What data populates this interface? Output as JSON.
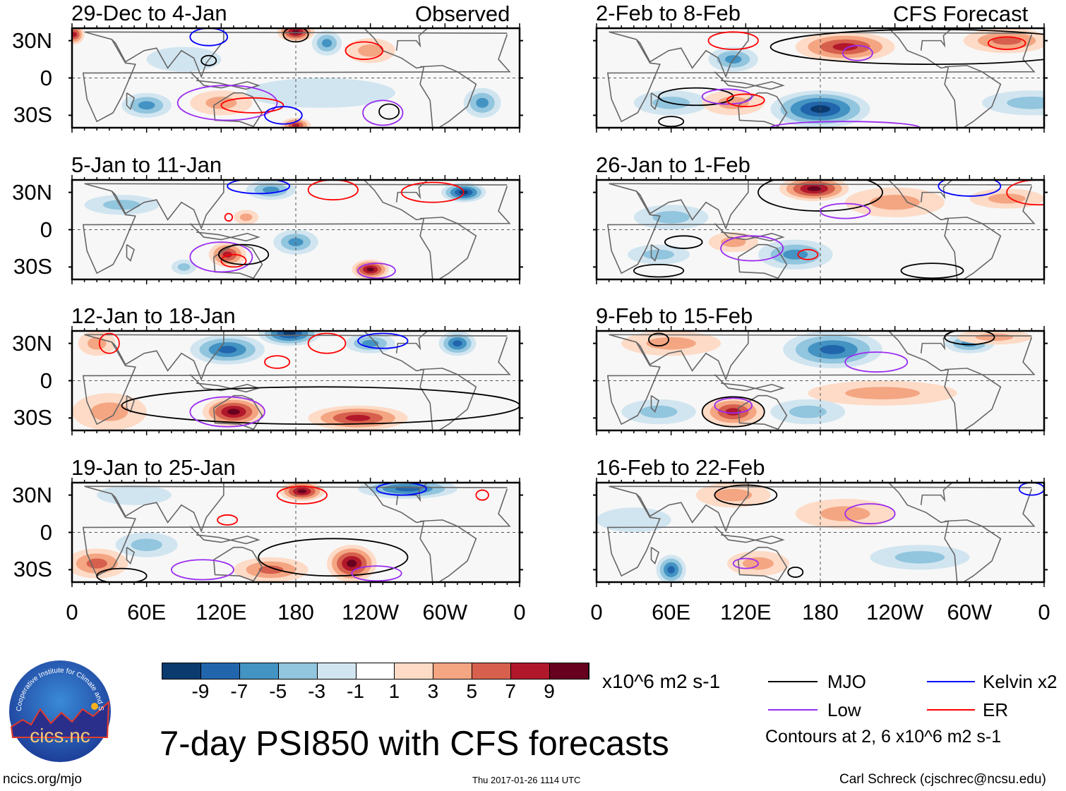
{
  "header": {
    "left_tag": "Observed",
    "right_tag": "CFS Forecast"
  },
  "chart_data": {
    "type": "heatmap",
    "title": "7-day PSI850 with CFS forecasts",
    "variable": "PSI850 anomaly",
    "units": "x10^6 m2 s-1",
    "lon_ticks": [
      "0",
      "60E",
      "120E",
      "180",
      "120W",
      "60W",
      "0"
    ],
    "lat_ticks": [
      "30N",
      "0",
      "30S"
    ],
    "lat_range": [
      -40,
      40
    ],
    "lon_range": [
      0,
      360
    ],
    "colorbar": {
      "levels": [
        "-9",
        "-7",
        "-5",
        "-3",
        "-1",
        "1",
        "3",
        "5",
        "7",
        "9"
      ],
      "colors": [
        "#0b3a6e",
        "#2166ac",
        "#4393c3",
        "#92c5de",
        "#d1e5f0",
        "#ffffff",
        "#fddbc7",
        "#f4a582",
        "#d6604d",
        "#b2182b",
        "#67001f"
      ]
    },
    "contour_legend": [
      {
        "name": "MJO",
        "color": "#000000"
      },
      {
        "name": "Kelvin x2",
        "color": "#0000ff"
      },
      {
        "name": "Low",
        "color": "#9a2cf0"
      },
      {
        "name": "ER",
        "color": "#ff0000"
      }
    ],
    "contour_note": "Contours at 2, 6 x10^6 m2 s-1",
    "panels": [
      {
        "period": "29-Dec to 4-Jan",
        "kind": "observed",
        "anomalies": [
          [
            200,
            -12,
            -2,
            60,
            12
          ],
          [
            180,
            37,
            9,
            15,
            8
          ],
          [
            205,
            28,
            -5,
            12,
            10
          ],
          [
            240,
            22,
            3,
            20,
            10
          ],
          [
            330,
            -20,
            -5,
            15,
            12
          ],
          [
            60,
            -22,
            -5,
            20,
            10
          ],
          [
            120,
            -20,
            3,
            25,
            10
          ],
          [
            180,
            -38,
            7,
            12,
            6
          ],
          [
            2,
            35,
            7,
            8,
            8
          ],
          [
            90,
            15,
            -2,
            30,
            10
          ]
        ],
        "contours": [
          [
            "MJO",
            180,
            35,
            10,
            6
          ],
          [
            "Kelvin",
            110,
            33,
            15,
            7
          ],
          [
            "ER",
            235,
            22,
            15,
            7
          ],
          [
            "Low",
            125,
            -20,
            40,
            14
          ],
          [
            "ER",
            145,
            -22,
            25,
            6
          ],
          [
            "MJO",
            255,
            -27,
            8,
            6
          ],
          [
            "Kelvin",
            170,
            -30,
            15,
            7
          ],
          [
            "MJO",
            110,
            14,
            6,
            4
          ],
          [
            "Low",
            250,
            -28,
            16,
            10
          ]
        ]
      },
      {
        "period": "2-Feb to 8-Feb",
        "kind": "forecast",
        "anomalies": [
          [
            200,
            25,
            7,
            40,
            12
          ],
          [
            330,
            30,
            5,
            35,
            10
          ],
          [
            180,
            -25,
            -9,
            40,
            15
          ],
          [
            110,
            15,
            -5,
            20,
            10
          ],
          [
            60,
            -20,
            -3,
            30,
            10
          ],
          [
            110,
            -20,
            3,
            25,
            10
          ],
          [
            350,
            -20,
            -3,
            40,
            10
          ]
        ],
        "contours": [
          [
            "MJO",
            270,
            25,
            130,
            14
          ],
          [
            "ER",
            110,
            30,
            20,
            7
          ],
          [
            "ER",
            330,
            28,
            15,
            5
          ],
          [
            "MJO",
            80,
            -15,
            30,
            7
          ],
          [
            "Low",
            105,
            -15,
            20,
            6
          ],
          [
            "ER",
            120,
            -18,
            15,
            5
          ],
          [
            "MJO",
            60,
            -35,
            10,
            4
          ],
          [
            "Low",
            200,
            -40,
            60,
            5
          ],
          [
            "Low",
            210,
            20,
            12,
            6
          ]
        ]
      },
      {
        "period": "5-Jan to 11-Jan",
        "kind": "observed",
        "anomalies": [
          [
            315,
            30,
            -9,
            18,
            8
          ],
          [
            160,
            32,
            -5,
            20,
            8
          ],
          [
            180,
            -10,
            -5,
            18,
            10
          ],
          [
            40,
            20,
            -3,
            30,
            8
          ],
          [
            125,
            -20,
            7,
            15,
            10
          ],
          [
            240,
            -32,
            9,
            15,
            8
          ],
          [
            140,
            10,
            3,
            10,
            6
          ],
          [
            90,
            -30,
            -3,
            10,
            6
          ]
        ],
        "contours": [
          [
            "Low",
            120,
            -22,
            25,
            12
          ],
          [
            "ER",
            130,
            -25,
            10,
            5
          ],
          [
            "MJO",
            138,
            -20,
            20,
            8
          ],
          [
            "Low",
            245,
            -33,
            15,
            6
          ],
          [
            "ER",
            290,
            30,
            25,
            8
          ],
          [
            "Kelvin",
            150,
            35,
            25,
            6
          ],
          [
            "ER",
            210,
            32,
            20,
            8
          ],
          [
            "ER",
            126,
            10,
            3,
            3
          ]
        ]
      },
      {
        "period": "26-Jan to 1-Feb",
        "kind": "forecast",
        "anomalies": [
          [
            175,
            33,
            9,
            28,
            10
          ],
          [
            240,
            22,
            3,
            40,
            12
          ],
          [
            160,
            -20,
            -5,
            30,
            12
          ],
          [
            330,
            25,
            3,
            30,
            8
          ],
          [
            60,
            10,
            -3,
            30,
            10
          ],
          [
            50,
            -20,
            -3,
            25,
            8
          ],
          [
            110,
            -10,
            3,
            20,
            8
          ]
        ],
        "contours": [
          [
            "MJO",
            180,
            30,
            50,
            15
          ],
          [
            "ER",
            355,
            30,
            25,
            10
          ],
          [
            "Low",
            200,
            15,
            20,
            6
          ],
          [
            "Low",
            125,
            -15,
            25,
            10
          ],
          [
            "MJO",
            70,
            -10,
            15,
            5
          ],
          [
            "MJO",
            50,
            -33,
            20,
            5
          ],
          [
            "ER",
            170,
            -20,
            8,
            4
          ],
          [
            "MJO",
            270,
            -33,
            25,
            6
          ],
          [
            "Kelvin",
            300,
            35,
            25,
            8
          ]
        ]
      },
      {
        "period": "12-Jan to 18-Jan",
        "kind": "observed",
        "anomalies": [
          [
            175,
            38,
            -9,
            25,
            10
          ],
          [
            125,
            25,
            -7,
            30,
            12
          ],
          [
            310,
            30,
            -7,
            15,
            10
          ],
          [
            240,
            30,
            -5,
            20,
            8
          ],
          [
            130,
            -25,
            9,
            25,
            12
          ],
          [
            230,
            -30,
            7,
            40,
            10
          ],
          [
            30,
            -25,
            3,
            30,
            15
          ],
          [
            20,
            30,
            3,
            15,
            10
          ]
        ],
        "contours": [
          [
            "MJO",
            200,
            -20,
            160,
            15
          ],
          [
            "Low",
            125,
            -25,
            30,
            12
          ],
          [
            "ER",
            165,
            15,
            10,
            5
          ],
          [
            "ER",
            205,
            30,
            15,
            8
          ],
          [
            "ER",
            30,
            30,
            8,
            8
          ],
          [
            "Kelvin",
            250,
            32,
            20,
            6
          ]
        ]
      },
      {
        "period": "9-Feb to 15-Feb",
        "kind": "forecast",
        "anomalies": [
          [
            190,
            25,
            -7,
            40,
            15
          ],
          [
            300,
            30,
            -5,
            20,
            8
          ],
          [
            110,
            -25,
            7,
            25,
            12
          ],
          [
            230,
            -10,
            3,
            60,
            10
          ],
          [
            50,
            -25,
            -3,
            30,
            10
          ],
          [
            170,
            -25,
            -3,
            30,
            10
          ],
          [
            60,
            30,
            3,
            40,
            10
          ],
          [
            320,
            35,
            3,
            30,
            6
          ]
        ],
        "contours": [
          [
            "Low",
            225,
            15,
            25,
            8
          ],
          [
            "MJO",
            110,
            -25,
            25,
            12
          ],
          [
            "Low",
            110,
            -20,
            15,
            6
          ],
          [
            "MJO",
            300,
            35,
            20,
            6
          ],
          [
            "MJO",
            50,
            33,
            8,
            5
          ]
        ]
      },
      {
        "period": "19-Jan to 25-Jan",
        "kind": "observed",
        "anomalies": [
          [
            185,
            33,
            9,
            18,
            8
          ],
          [
            270,
            35,
            -7,
            40,
            8
          ],
          [
            225,
            -25,
            9,
            20,
            15
          ],
          [
            160,
            -30,
            5,
            30,
            10
          ],
          [
            60,
            -10,
            -3,
            25,
            10
          ],
          [
            20,
            -25,
            5,
            25,
            12
          ],
          [
            50,
            30,
            -1,
            30,
            8
          ]
        ],
        "contours": [
          [
            "ER",
            185,
            30,
            20,
            7
          ],
          [
            "MJO",
            210,
            -20,
            60,
            15
          ],
          [
            "Low",
            245,
            -33,
            20,
            6
          ],
          [
            "MJO",
            40,
            -35,
            20,
            6
          ],
          [
            "Low",
            105,
            -30,
            25,
            8
          ],
          [
            "ER",
            125,
            10,
            8,
            4
          ],
          [
            "ER",
            330,
            30,
            5,
            4
          ],
          [
            "Kelvin",
            265,
            35,
            20,
            5
          ]
        ]
      },
      {
        "period": "16-Feb to 22-Feb",
        "kind": "forecast",
        "anomalies": [
          [
            60,
            -30,
            -7,
            12,
            12
          ],
          [
            200,
            15,
            3,
            40,
            12
          ],
          [
            110,
            30,
            3,
            30,
            10
          ],
          [
            130,
            -25,
            3,
            25,
            10
          ],
          [
            260,
            -20,
            -3,
            40,
            10
          ],
          [
            30,
            10,
            -1,
            30,
            10
          ]
        ],
        "contours": [
          [
            "Low",
            220,
            15,
            20,
            8
          ],
          [
            "MJO",
            120,
            30,
            25,
            8
          ],
          [
            "Low",
            120,
            -25,
            10,
            4
          ],
          [
            "MJO",
            160,
            -32,
            6,
            4
          ],
          [
            "Kelvin",
            350,
            35,
            10,
            5
          ]
        ]
      }
    ]
  },
  "footer": {
    "site": "ncics.org/mjo",
    "timestamp": "Thu 2017-01-26 1114 UTC",
    "author": "Carl Schreck (cjschrec@ncsu.edu)"
  },
  "logo": {
    "name": "cics.nc",
    "ring_text": "Cooperative Institute for Climate and Satellites"
  }
}
